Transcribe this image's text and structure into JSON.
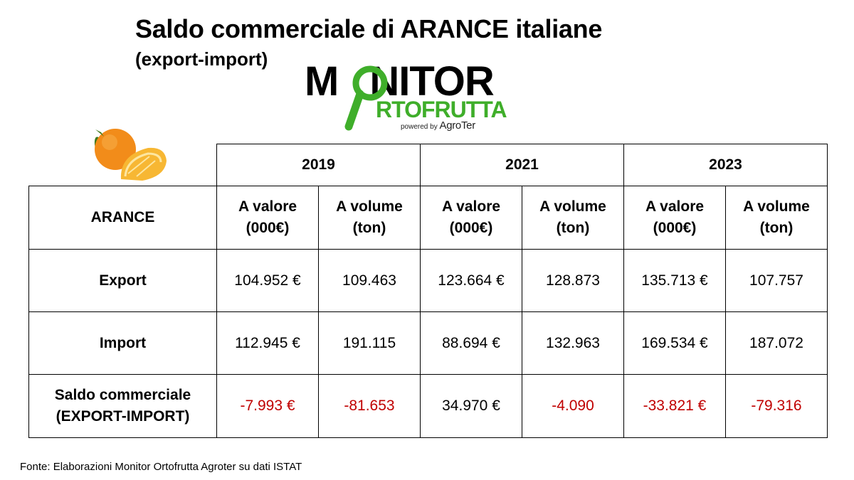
{
  "title": "Saldo commerciale di ARANCE italiane",
  "subtitle": "(export-import)",
  "logo": {
    "main": "MONITOR",
    "main_rest": "NITOR",
    "main_first": "M",
    "sub": "RTOFRUTTA",
    "powered_prefix": "powered by",
    "powered_brand": "AgroTer"
  },
  "table": {
    "years": [
      "2019",
      "2021",
      "2023"
    ],
    "corner_label": "ARANCE",
    "col_value_line1": "A valore",
    "col_value_line2": "(000€)",
    "col_volume_line1": "A volume",
    "col_volume_line2": "(ton)",
    "rows": {
      "export": {
        "label": "Export",
        "values": [
          "104.952 €",
          "109.463",
          "123.664 €",
          "128.873",
          "135.713 €",
          "107.757"
        ]
      },
      "import": {
        "label": "Import",
        "values": [
          "112.945 €",
          "191.115",
          "88.694 €",
          "132.963",
          "169.534 €",
          "187.072"
        ]
      },
      "saldo": {
        "label_line1": "Saldo commerciale",
        "label_line2": "(EXPORT-IMPORT)",
        "values": [
          "-7.993 €",
          "-81.653",
          "34.970 €",
          "-4.090",
          "-33.821 €",
          "-79.316"
        ]
      }
    }
  },
  "colors": {
    "negative": "#c00000",
    "logo_green": "#3fae2a",
    "orange": "#f28c1a"
  },
  "source": "Fonte: Elaborazioni Monitor Ortofrutta Agroter su dati ISTAT"
}
